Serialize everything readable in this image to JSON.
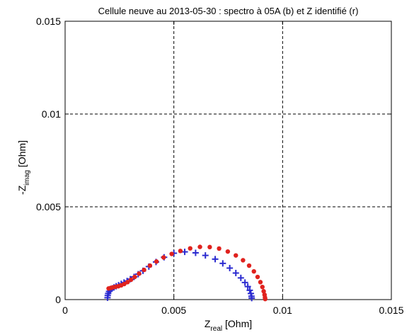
{
  "chart_data": {
    "type": "scatter",
    "title": "Cellule neuve au 2013-05-30 : spectro à 05A (b) et Z identifié (r)",
    "xlabel": {
      "main": "Z",
      "sub": "real",
      "unit": " [Ohm]"
    },
    "ylabel": {
      "main": "-Z",
      "sub": "imag",
      "unit": "  [Ohm]"
    },
    "xlim": [
      0,
      0.015
    ],
    "ylim": [
      0,
      0.015
    ],
    "xticks": [
      0,
      0.005,
      0.01,
      0.015
    ],
    "xtick_labels": [
      "0",
      "0.005",
      "0.01",
      "0.015"
    ],
    "yticks": [
      0,
      0.005,
      0.01,
      0.015
    ],
    "ytick_labels": [
      "0",
      "0.005",
      "0.01",
      "0.015"
    ],
    "grid": true,
    "series": [
      {
        "marker": "plus",
        "color": "#2b2bd0",
        "points": [
          [
            0.00195,
            0.0001
          ],
          [
            0.00196,
            0.00022
          ],
          [
            0.00198,
            0.00033
          ],
          [
            0.00202,
            0.00044
          ],
          [
            0.00208,
            0.00052
          ],
          [
            0.00216,
            0.0006
          ],
          [
            0.00225,
            0.00066
          ],
          [
            0.00235,
            0.00072
          ],
          [
            0.00246,
            0.00078
          ],
          [
            0.00258,
            0.00085
          ],
          [
            0.00271,
            0.00092
          ],
          [
            0.00285,
            0.001
          ],
          [
            0.003,
            0.0011
          ],
          [
            0.00317,
            0.00122
          ],
          [
            0.00336,
            0.00137
          ],
          [
            0.00358,
            0.00155
          ],
          [
            0.00385,
            0.00178
          ],
          [
            0.00418,
            0.00203
          ],
          [
            0.00455,
            0.00228
          ],
          [
            0.005,
            0.0025
          ],
          [
            0.0055,
            0.00257
          ],
          [
            0.006,
            0.00252
          ],
          [
            0.00645,
            0.00238
          ],
          [
            0.0069,
            0.00218
          ],
          [
            0.00725,
            0.00195
          ],
          [
            0.00757,
            0.0017
          ],
          [
            0.00785,
            0.00143
          ],
          [
            0.00808,
            0.00117
          ],
          [
            0.00827,
            0.00092
          ],
          [
            0.0084,
            0.0007
          ],
          [
            0.00849,
            0.0005
          ],
          [
            0.00854,
            0.00033
          ],
          [
            0.00857,
            0.00018
          ],
          [
            0.00858,
            8e-05
          ]
        ]
      },
      {
        "marker": "dot",
        "color": "#e0221e",
        "points": [
          [
            0.002,
            0.0006
          ],
          [
            0.0021,
            0.00063
          ],
          [
            0.0022,
            0.00066
          ],
          [
            0.00232,
            0.00069
          ],
          [
            0.00245,
            0.00072
          ],
          [
            0.00258,
            0.00077
          ],
          [
            0.00272,
            0.00084
          ],
          [
            0.00287,
            0.00094
          ],
          [
            0.00303,
            0.00107
          ],
          [
            0.0032,
            0.00122
          ],
          [
            0.0034,
            0.0014
          ],
          [
            0.00363,
            0.0016
          ],
          [
            0.0039,
            0.00183
          ],
          [
            0.0042,
            0.00205
          ],
          [
            0.00453,
            0.00227
          ],
          [
            0.0049,
            0.00246
          ],
          [
            0.0053,
            0.00262
          ],
          [
            0.00575,
            0.00276
          ],
          [
            0.0062,
            0.00284
          ],
          [
            0.00665,
            0.00283
          ],
          [
            0.00708,
            0.00275
          ],
          [
            0.00748,
            0.00259
          ],
          [
            0.00785,
            0.00238
          ],
          [
            0.00818,
            0.00212
          ],
          [
            0.00846,
            0.00183
          ],
          [
            0.00868,
            0.00152
          ],
          [
            0.00885,
            0.00122
          ],
          [
            0.00898,
            0.00094
          ],
          [
            0.00907,
            0.00068
          ],
          [
            0.00913,
            0.00045
          ],
          [
            0.00917,
            0.00026
          ],
          [
            0.00919,
            0.00011
          ],
          [
            0.0092,
            3e-05
          ]
        ]
      }
    ]
  }
}
